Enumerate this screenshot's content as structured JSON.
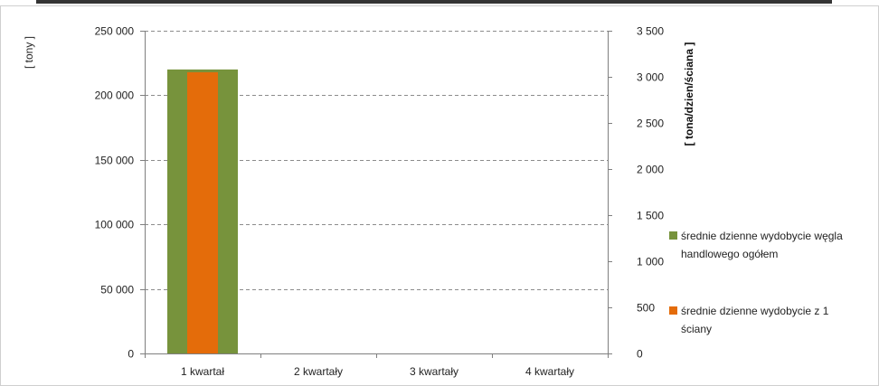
{
  "chart_data": {
    "type": "bar",
    "title": "",
    "categories": [
      "1 kwartał",
      "2 kwartały",
      "3 kwartały",
      "4 kwartały"
    ],
    "series": [
      {
        "name": "średnie dzienne wydobycie węgla handlowego ogółem",
        "axis": "left",
        "values": [
          220000,
          null,
          null,
          null
        ],
        "color": "#77933c"
      },
      {
        "name": "średnie dzienne wydobycie z 1 ściany",
        "axis": "right",
        "values": [
          3050,
          null,
          null,
          null
        ],
        "color": "#e46c0a"
      }
    ],
    "y_left": {
      "label": "[ tony ]",
      "ylim": [
        0,
        250000
      ],
      "ticks": [
        0,
        50000,
        100000,
        150000,
        200000,
        250000
      ],
      "tick_labels": [
        "0",
        "50 000",
        "100 000",
        "150 000",
        "200 000",
        "250 000"
      ]
    },
    "y_right": {
      "label": "[ tona/dzien/ściana ]",
      "ylim": [
        0,
        3500
      ],
      "ticks": [
        0,
        500,
        1000,
        1500,
        2000,
        2500,
        3000,
        3500
      ],
      "tick_labels": [
        "0",
        "500",
        "1 000",
        "1 500",
        "2 000",
        "2 500",
        "3 000",
        "3 500"
      ]
    },
    "grid": true,
    "legend_position": "right",
    "legend": [
      {
        "lines": [
          "średnie dzienne wydobycie węgla",
          "handlowego ogółem"
        ],
        "color": "#77933c"
      },
      {
        "lines": [
          "średnie dzienne wydobycie z 1",
          "ściany"
        ],
        "color": "#e46c0a"
      }
    ]
  }
}
